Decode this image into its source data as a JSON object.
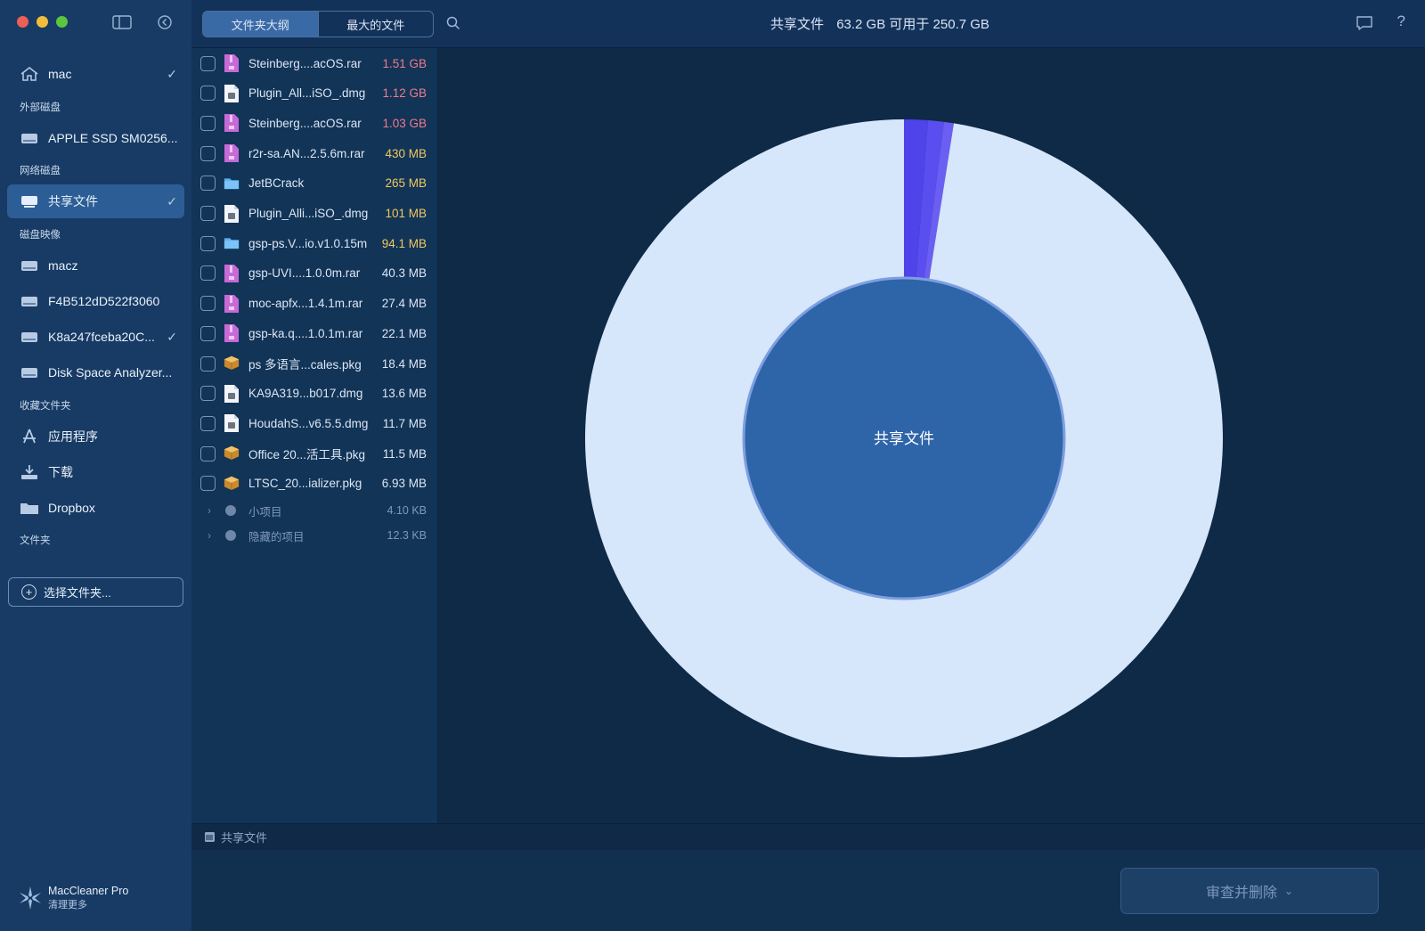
{
  "sidebar": {
    "items": [
      {
        "label": "mac",
        "checked": true
      },
      {
        "section": "外部磁盘"
      },
      {
        "label": "APPLE SSD SM0256..."
      },
      {
        "section": "网络磁盘"
      },
      {
        "label": "共享文件",
        "checked": true,
        "active": true
      },
      {
        "section": "磁盘映像"
      },
      {
        "label": "macz"
      },
      {
        "label": "F4B512dD522f3060"
      },
      {
        "label": "K8a247fceba20C...",
        "checked": true
      },
      {
        "label": "Disk Space Analyzer..."
      },
      {
        "section": "收藏文件夹"
      },
      {
        "label": "应用程序"
      },
      {
        "label": "下载"
      },
      {
        "label": "Dropbox"
      },
      {
        "section": "文件夹"
      }
    ],
    "choose_folder": "选择文件夹...",
    "brand_name": "MacCleaner Pro",
    "brand_sub": "清理更多"
  },
  "toolbar": {
    "tab_outline": "文件夹大纲",
    "tab_largest": "最大的文件",
    "active_tab": "文件夹大纲",
    "title_name": "共享文件",
    "title_space": "63.2 GB 可用于 250.7 GB"
  },
  "files": [
    {
      "name": "Steinberg....acOS.rar",
      "size": "1.51 GB",
      "type": "rar",
      "color": "#f07a8c"
    },
    {
      "name": "Plugin_All...iSO_.dmg",
      "size": "1.12 GB",
      "type": "dmg",
      "color": "#f07a8c"
    },
    {
      "name": "Steinberg....acOS.rar",
      "size": "1.03 GB",
      "type": "rar",
      "color": "#f07a8c"
    },
    {
      "name": "r2r-sa.AN...2.5.6m.rar",
      "size": "430 MB",
      "type": "rar",
      "color": "#f0c860"
    },
    {
      "name": "JetBCrack",
      "size": "265 MB",
      "type": "folder",
      "color": "#f0c860"
    },
    {
      "name": "Plugin_Alli...iSO_.dmg",
      "size": "101 MB",
      "type": "dmg",
      "color": "#f0c860"
    },
    {
      "name": "gsp-ps.V...io.v1.0.15m",
      "size": "94.1 MB",
      "type": "folder",
      "color": "#f0c860"
    },
    {
      "name": "gsp-UVI....1.0.0m.rar",
      "size": "40.3 MB",
      "type": "rar",
      "color": "#dce6f5"
    },
    {
      "name": "moc-apfx...1.4.1m.rar",
      "size": "27.4 MB",
      "type": "rar",
      "color": "#dce6f5"
    },
    {
      "name": "gsp-ka.q....1.0.1m.rar",
      "size": "22.1 MB",
      "type": "rar",
      "color": "#dce6f5"
    },
    {
      "name": "ps 多语言...cales.pkg",
      "size": "18.4 MB",
      "type": "pkg",
      "color": "#dce6f5"
    },
    {
      "name": "KA9A319...b017.dmg",
      "size": "13.6 MB",
      "type": "dmg",
      "color": "#dce6f5"
    },
    {
      "name": "HoudahS...v6.5.5.dmg",
      "size": "11.7 MB",
      "type": "dmg",
      "color": "#dce6f5"
    },
    {
      "name": "Office 20...活工具.pkg",
      "size": "11.5 MB",
      "type": "pkg",
      "color": "#dce6f5"
    },
    {
      "name": "LTSC_20...ializer.pkg",
      "size": "6.93 MB",
      "type": "pkg",
      "color": "#dce6f5"
    }
  ],
  "groups": [
    {
      "name": "小项目",
      "size": "4.10 KB"
    },
    {
      "name": "隐藏的项目",
      "size": "12.3 KB"
    }
  ],
  "chart_data": {
    "type": "pie",
    "center_label": "共享文件",
    "slices": [
      {
        "share": 0.012,
        "color": "#4f43ea"
      },
      {
        "share": 0.008,
        "color": "#5a4ef0"
      },
      {
        "share": 0.005,
        "color": "#6a5ff2"
      },
      {
        "share": 0.975,
        "color": "#d6e6fb"
      }
    ],
    "start_offset_share": 0.0
  },
  "pathbar": {
    "label": "共享文件"
  },
  "review_button": "审查并删除"
}
